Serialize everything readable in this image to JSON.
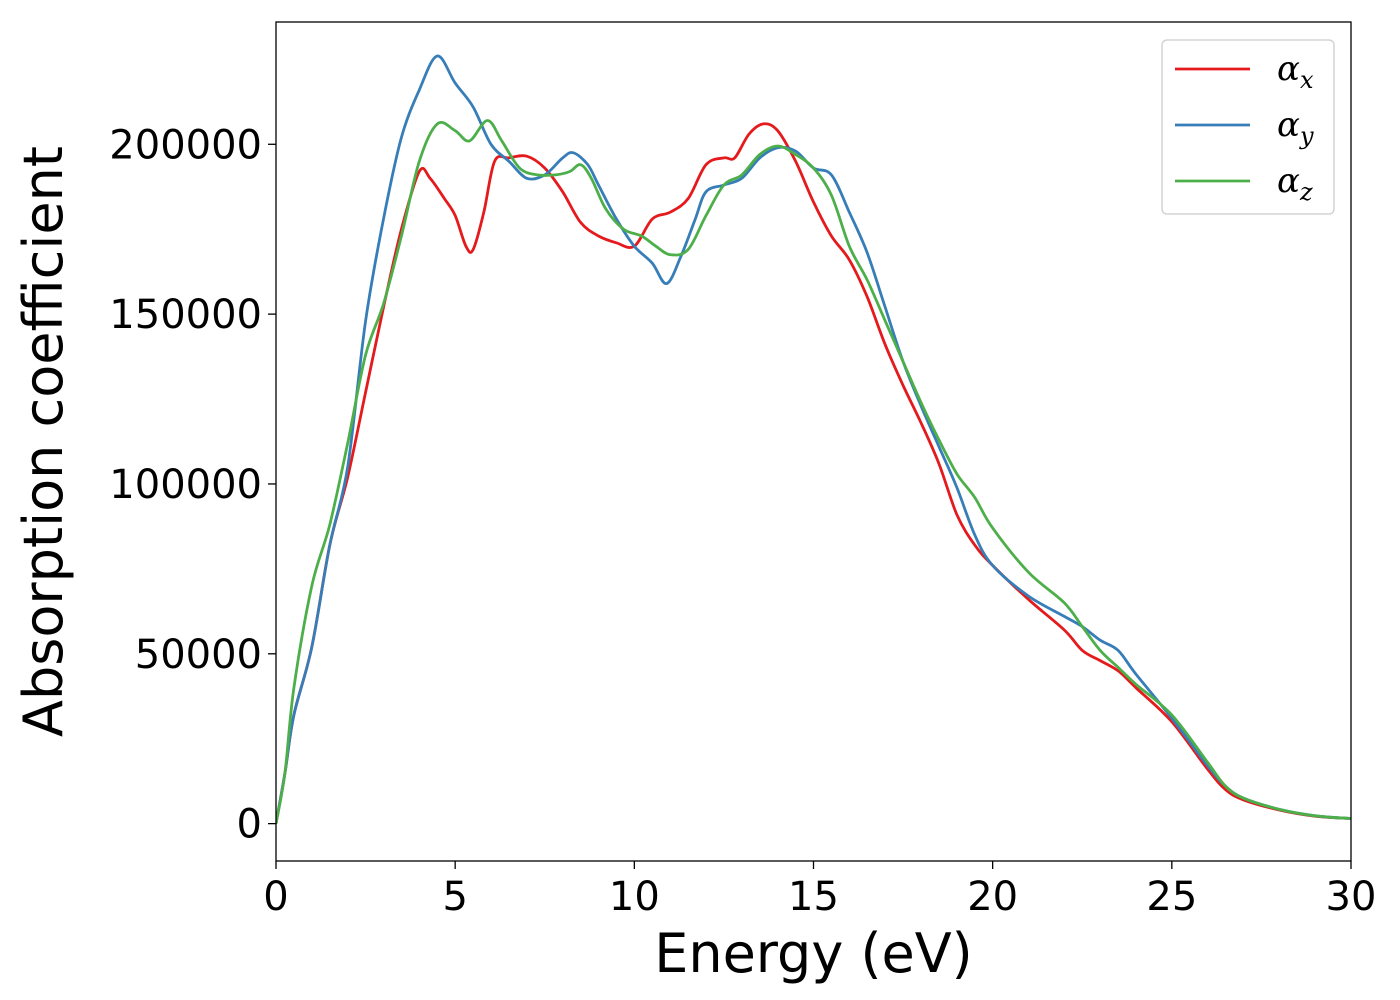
{
  "chart_data": {
    "type": "line",
    "xlabel": "Energy (eV)",
    "ylabel": "Absorption coefficient",
    "xlim": [
      0,
      30
    ],
    "ylim": [
      -11000,
      236000
    ],
    "xticks": [
      0,
      5,
      10,
      15,
      20,
      25,
      30
    ],
    "yticks": [
      0,
      50000,
      100000,
      150000,
      200000
    ],
    "xtick_labels": [
      "0",
      "5",
      "10",
      "15",
      "20",
      "25",
      "30"
    ],
    "ytick_labels": [
      "0",
      "50000",
      "100000",
      "150000",
      "200000"
    ],
    "grid": false,
    "legend_position": "top-right",
    "series": [
      {
        "name": "α",
        "subscript": "x",
        "color": "#e41a1c",
        "points": [
          [
            0,
            0
          ],
          [
            0.25,
            15000
          ],
          [
            0.5,
            32000
          ],
          [
            1.0,
            52000
          ],
          [
            1.5,
            82000
          ],
          [
            2.0,
            102000
          ],
          [
            2.5,
            127000
          ],
          [
            3.0,
            152000
          ],
          [
            3.5,
            175000
          ],
          [
            4.0,
            192000
          ],
          [
            4.3,
            190000
          ],
          [
            4.7,
            184000
          ],
          [
            5.0,
            179000
          ],
          [
            5.3,
            170000
          ],
          [
            5.5,
            169000
          ],
          [
            5.8,
            180000
          ],
          [
            6.1,
            195000
          ],
          [
            6.5,
            196000
          ],
          [
            7.0,
            196500
          ],
          [
            7.5,
            193000
          ],
          [
            8.0,
            186000
          ],
          [
            8.5,
            177000
          ],
          [
            9.0,
            173000
          ],
          [
            9.5,
            171000
          ],
          [
            10.0,
            170000
          ],
          [
            10.5,
            178000
          ],
          [
            11.0,
            180000
          ],
          [
            11.5,
            184000
          ],
          [
            12.0,
            194000
          ],
          [
            12.5,
            196000
          ],
          [
            12.8,
            196000
          ],
          [
            13.2,
            203000
          ],
          [
            13.6,
            206000
          ],
          [
            14.0,
            204000
          ],
          [
            14.5,
            195000
          ],
          [
            15.0,
            183000
          ],
          [
            15.5,
            173000
          ],
          [
            16.0,
            166000
          ],
          [
            16.5,
            155000
          ],
          [
            17.0,
            141000
          ],
          [
            17.5,
            129000
          ],
          [
            18.0,
            118000
          ],
          [
            18.5,
            106000
          ],
          [
            19.0,
            91000
          ],
          [
            19.5,
            82000
          ],
          [
            20.0,
            76000
          ],
          [
            21.0,
            66000
          ],
          [
            22.0,
            57000
          ],
          [
            22.5,
            51000
          ],
          [
            23.0,
            48000
          ],
          [
            23.5,
            45000
          ],
          [
            24.0,
            40000
          ],
          [
            25.0,
            30000
          ],
          [
            26.0,
            16000
          ],
          [
            26.5,
            10000
          ],
          [
            27.0,
            7000
          ],
          [
            28.0,
            4000
          ],
          [
            29.0,
            2200
          ],
          [
            30.0,
            1500
          ]
        ]
      },
      {
        "name": "α",
        "subscript": "y",
        "color": "#377eb8",
        "points": [
          [
            0,
            0
          ],
          [
            0.25,
            15000
          ],
          [
            0.5,
            32000
          ],
          [
            1.0,
            52000
          ],
          [
            1.5,
            82000
          ],
          [
            2.0,
            105000
          ],
          [
            2.5,
            148000
          ],
          [
            3.0,
            178000
          ],
          [
            3.5,
            202000
          ],
          [
            4.0,
            216000
          ],
          [
            4.5,
            226000
          ],
          [
            5.0,
            218000
          ],
          [
            5.5,
            211000
          ],
          [
            6.0,
            200000
          ],
          [
            6.5,
            195000
          ],
          [
            7.0,
            190000
          ],
          [
            7.5,
            191000
          ],
          [
            8.0,
            196000
          ],
          [
            8.3,
            197500
          ],
          [
            8.7,
            194000
          ],
          [
            9.0,
            188000
          ],
          [
            9.5,
            178000
          ],
          [
            10.0,
            170000
          ],
          [
            10.5,
            165000
          ],
          [
            10.9,
            159000
          ],
          [
            11.3,
            167000
          ],
          [
            11.7,
            178000
          ],
          [
            12.0,
            186000
          ],
          [
            12.5,
            188000
          ],
          [
            13.0,
            190000
          ],
          [
            13.5,
            196000
          ],
          [
            14.0,
            199000
          ],
          [
            14.5,
            198000
          ],
          [
            15.0,
            193000
          ],
          [
            15.5,
            191000
          ],
          [
            16.0,
            180000
          ],
          [
            16.5,
            168000
          ],
          [
            17.0,
            152000
          ],
          [
            17.5,
            136000
          ],
          [
            18.0,
            123000
          ],
          [
            18.5,
            111000
          ],
          [
            19.0,
            99000
          ],
          [
            19.5,
            85000
          ],
          [
            20.0,
            76000
          ],
          [
            21.0,
            67000
          ],
          [
            22.0,
            61000
          ],
          [
            22.5,
            58000
          ],
          [
            23.0,
            54000
          ],
          [
            23.5,
            51000
          ],
          [
            24.0,
            44000
          ],
          [
            25.0,
            31000
          ],
          [
            26.0,
            17000
          ],
          [
            26.5,
            11000
          ],
          [
            27.0,
            7500
          ],
          [
            28.0,
            4200
          ],
          [
            29.0,
            2300
          ],
          [
            30.0,
            1500
          ]
        ]
      },
      {
        "name": "α",
        "subscript": "z",
        "color": "#4daf4a",
        "points": [
          [
            0,
            0
          ],
          [
            0.25,
            15000
          ],
          [
            0.5,
            40000
          ],
          [
            1.0,
            70000
          ],
          [
            1.5,
            88000
          ],
          [
            2.0,
            112000
          ],
          [
            2.5,
            138000
          ],
          [
            3.0,
            153000
          ],
          [
            3.5,
            173000
          ],
          [
            4.0,
            195000
          ],
          [
            4.5,
            206000
          ],
          [
            5.0,
            204000
          ],
          [
            5.4,
            201000
          ],
          [
            5.9,
            207000
          ],
          [
            6.3,
            201000
          ],
          [
            6.8,
            193000
          ],
          [
            7.3,
            191000
          ],
          [
            7.8,
            191000
          ],
          [
            8.2,
            192000
          ],
          [
            8.5,
            194000
          ],
          [
            8.8,
            190000
          ],
          [
            9.2,
            181000
          ],
          [
            9.7,
            175000
          ],
          [
            10.2,
            173000
          ],
          [
            10.6,
            170000
          ],
          [
            11.0,
            167500
          ],
          [
            11.5,
            169000
          ],
          [
            12.0,
            179000
          ],
          [
            12.5,
            188000
          ],
          [
            13.0,
            191000
          ],
          [
            13.5,
            197000
          ],
          [
            14.0,
            199500
          ],
          [
            14.5,
            197000
          ],
          [
            15.0,
            193000
          ],
          [
            15.5,
            185000
          ],
          [
            16.0,
            170000
          ],
          [
            16.5,
            160000
          ],
          [
            17.0,
            148000
          ],
          [
            17.5,
            136000
          ],
          [
            18.0,
            124000
          ],
          [
            18.5,
            113000
          ],
          [
            19.0,
            103000
          ],
          [
            19.5,
            96000
          ],
          [
            20.0,
            87000
          ],
          [
            21.0,
            74000
          ],
          [
            22.0,
            65000
          ],
          [
            22.5,
            58000
          ],
          [
            23.0,
            51000
          ],
          [
            23.5,
            46000
          ],
          [
            24.0,
            41000
          ],
          [
            25.0,
            32000
          ],
          [
            26.0,
            18000
          ],
          [
            26.5,
            11000
          ],
          [
            27.0,
            7500
          ],
          [
            28.0,
            4200
          ],
          [
            29.0,
            2300
          ],
          [
            30.0,
            1500
          ]
        ]
      }
    ]
  }
}
